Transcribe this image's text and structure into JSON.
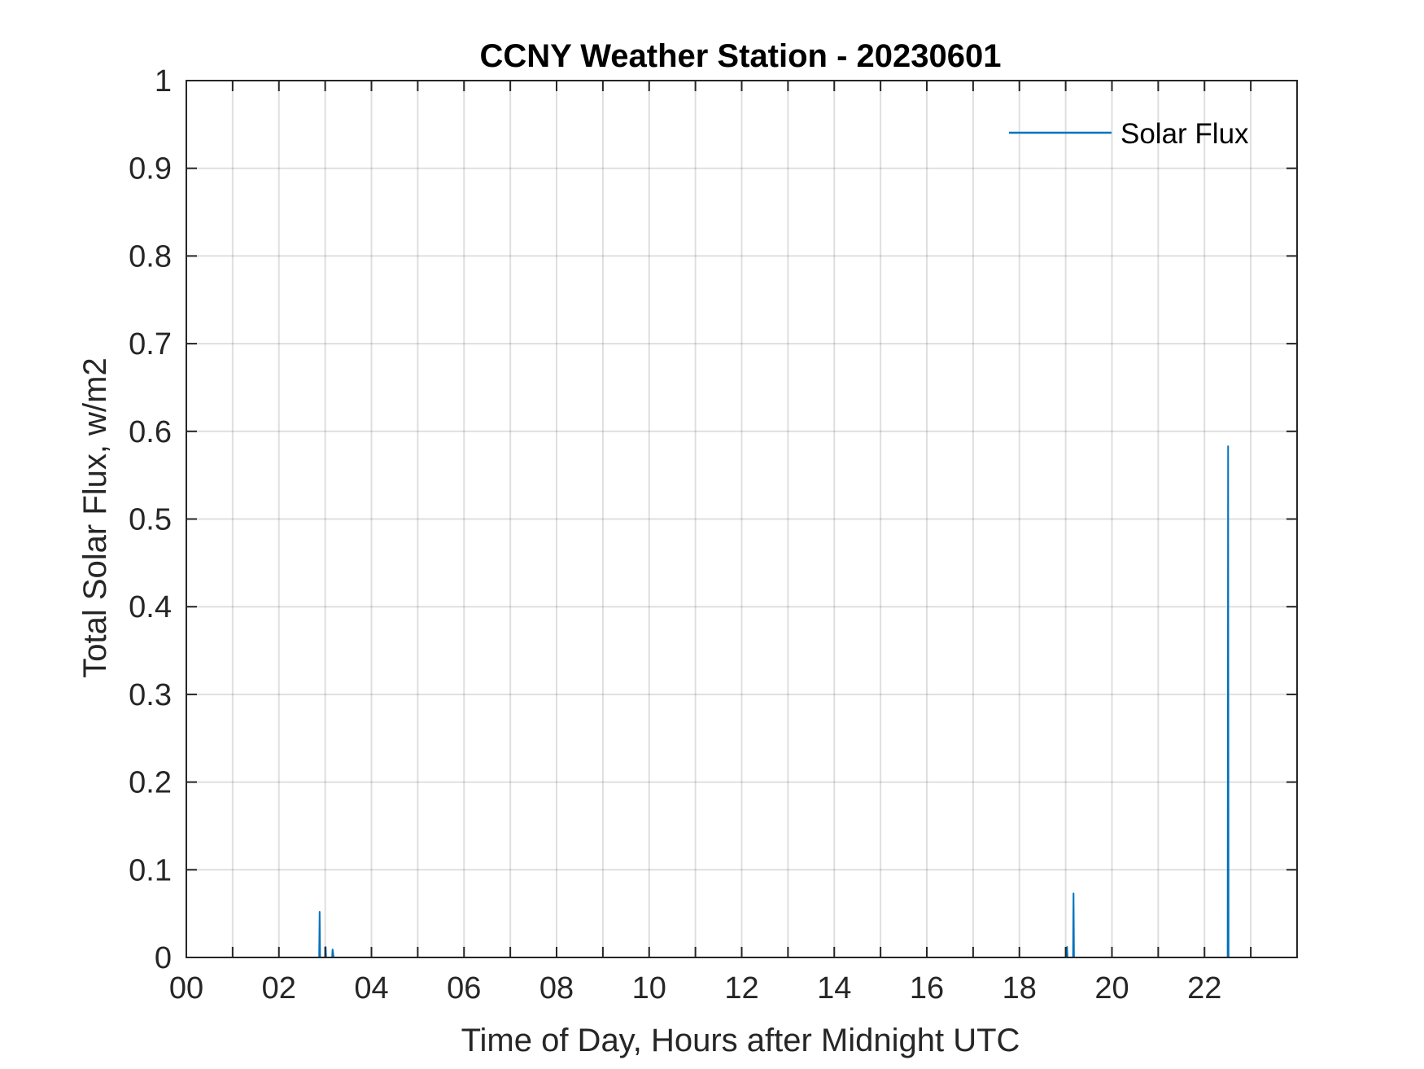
{
  "chart_data": {
    "type": "line",
    "title": "CCNY Weather Station - 20230601",
    "xlabel": "Time of Day, Hours after Midnight UTC",
    "ylabel": "Total Solar Flux, w/m2",
    "xlim": [
      0,
      24
    ],
    "ylim": [
      0,
      1
    ],
    "x_ticks": [
      0,
      1,
      2,
      3,
      4,
      5,
      6,
      7,
      8,
      9,
      10,
      11,
      12,
      13,
      14,
      15,
      16,
      17,
      18,
      19,
      20,
      21,
      22,
      23
    ],
    "x_tick_labels": [
      {
        "x": 0,
        "label": "00"
      },
      {
        "x": 2,
        "label": "02"
      },
      {
        "x": 4,
        "label": "04"
      },
      {
        "x": 6,
        "label": "06"
      },
      {
        "x": 8,
        "label": "08"
      },
      {
        "x": 10,
        "label": "10"
      },
      {
        "x": 12,
        "label": "12"
      },
      {
        "x": 14,
        "label": "14"
      },
      {
        "x": 16,
        "label": "16"
      },
      {
        "x": 18,
        "label": "18"
      },
      {
        "x": 20,
        "label": "20"
      },
      {
        "x": 22,
        "label": "22"
      }
    ],
    "y_ticks": [
      {
        "y": 0,
        "label": "0"
      },
      {
        "y": 0.1,
        "label": "0.1"
      },
      {
        "y": 0.2,
        "label": "0.2"
      },
      {
        "y": 0.3,
        "label": "0.3"
      },
      {
        "y": 0.4,
        "label": "0.4"
      },
      {
        "y": 0.5,
        "label": "0.5"
      },
      {
        "y": 0.6,
        "label": "0.6"
      },
      {
        "y": 0.7,
        "label": "0.7"
      },
      {
        "y": 0.8,
        "label": "0.8"
      },
      {
        "y": 0.9,
        "label": "0.9"
      },
      {
        "y": 1,
        "label": "1"
      }
    ],
    "grid": true,
    "legend_position": "top-right",
    "series_color": "#0072BD",
    "series": [
      {
        "name": "Solar Flux",
        "x": [
          0,
          2.87,
          2.88,
          2.89,
          3.0,
          3.01,
          3.02,
          3.15,
          3.16,
          3.17,
          3.18,
          19.02,
          19.03,
          19.04,
          19.16,
          19.17,
          19.18,
          22.5,
          22.51,
          22.52,
          23.99
        ],
        "y": [
          0,
          0,
          0.052,
          0,
          0,
          0.012,
          0,
          0,
          0.009,
          0.005,
          0,
          0,
          0.012,
          0,
          0,
          0.073,
          0,
          0,
          0.583,
          0,
          0
        ]
      }
    ]
  }
}
